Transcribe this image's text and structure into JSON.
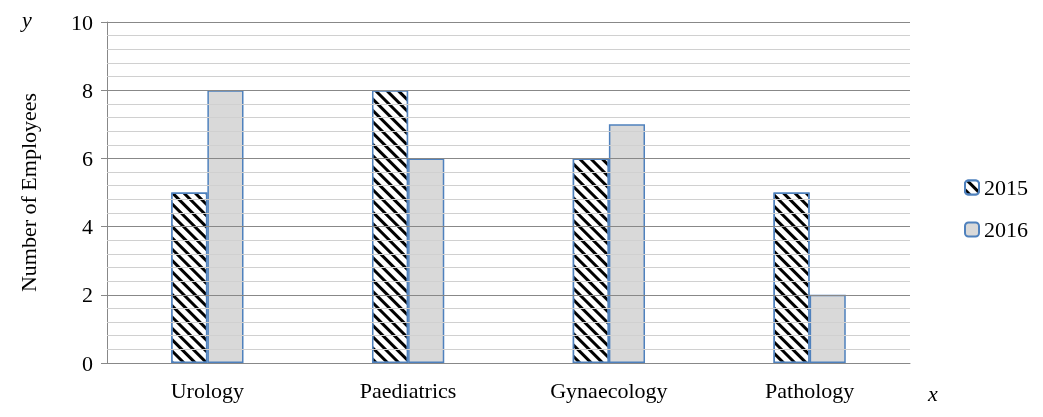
{
  "chart_data": {
    "type": "bar",
    "ylabel": "Number of Employees",
    "annotations": [
      "y",
      "x"
    ],
    "categories": [
      "Urology",
      "Paediatrics",
      "Gynaecology",
      "Pathology"
    ],
    "series": [
      {
        "name": "2015",
        "color": "#000000",
        "values": [
          5,
          8,
          6,
          5
        ]
      },
      {
        "name": "2016",
        "color": "#d9d9d9",
        "values": [
          8,
          6,
          7,
          2
        ]
      }
    ],
    "ylim": [
      0,
      10
    ],
    "yticks": [
      0,
      {
        "value": 0.4,
        "label": null
      },
      {
        "value": 0.8,
        "label": null
      },
      {
        "value": 1.2,
        "label": null
      },
      {
        "value": 1.6,
        "label": null
      },
      2,
      {
        "value": 2.4,
        "label": null
      },
      {
        "value": 2.8,
        "label": null
      },
      {
        "value": 3.2,
        "label": null
      },
      {
        "value": 3.6,
        "label": null
      },
      4,
      {
        "value": 4.4,
        "label": null
      },
      {
        "value": 4.8,
        "label": null
      },
      {
        "value": 5.2,
        "label": null
      },
      {
        "value": 5.6,
        "label": null
      },
      6,
      {
        "value": 6.4,
        "label": null
      },
      {
        "value": 6.8,
        "label": null
      },
      {
        "value": 7.2,
        "label": null
      },
      {
        "value": 7.6,
        "label": null
      },
      8,
      {
        "value": 8.4,
        "label": null
      },
      {
        "value": 8.8,
        "label": null
      },
      {
        "value": 9.2,
        "label": null
      },
      {
        "value": 9.6,
        "label": null
      },
      10
    ],
    "grid": "y",
    "legend": "right"
  }
}
